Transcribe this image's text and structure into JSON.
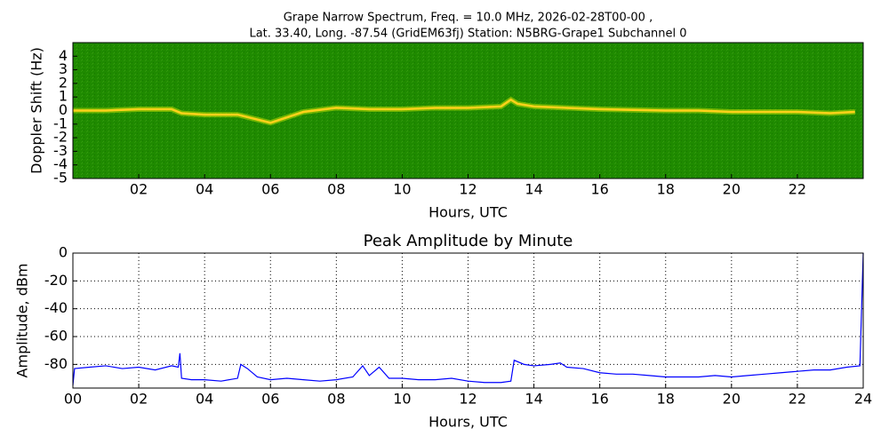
{
  "chart_data": [
    {
      "type": "spectrogram",
      "title": "Grape Narrow Spectrum, Freq. = 10.0 MHz, 2026-02-28T00-00 ,",
      "subtitle": "Lat.  33.40, Long. -87.54 (GridEM63fj) Station: N5BRG-Grape1 Subchannel 0",
      "xlabel": "Hours, UTC",
      "ylabel": "Doppler Shift (Hz)",
      "xlim": [
        0,
        24
      ],
      "ylim": [
        -5,
        5
      ],
      "xticks": [
        {
          "value": 2,
          "label": "02"
        },
        {
          "value": 4,
          "label": "04"
        },
        {
          "value": 6,
          "label": "06"
        },
        {
          "value": 8,
          "label": "08"
        },
        10,
        12,
        14,
        16,
        18,
        20,
        22
      ],
      "yticks": [
        -5,
        -4,
        -3,
        -2,
        -1,
        0,
        1,
        2,
        3,
        4
      ],
      "color": "#ffd21a",
      "background": "#1f8a00",
      "x": [
        0,
        1,
        2,
        3,
        3.3,
        4,
        5,
        5.5,
        6,
        6.5,
        7,
        8,
        9,
        10,
        11,
        12,
        13,
        13.3,
        13.5,
        14,
        15,
        16,
        17,
        18,
        19,
        20,
        21,
        22,
        23,
        23.75
      ],
      "values": [
        0,
        0,
        0.1,
        0.1,
        -0.2,
        -0.3,
        -0.3,
        -0.6,
        -0.9,
        -0.5,
        -0.1,
        0.2,
        0.1,
        0.1,
        0.2,
        0.2,
        0.3,
        0.8,
        0.5,
        0.3,
        0.2,
        0.1,
        0.05,
        0,
        0,
        -0.1,
        -0.1,
        -0.1,
        -0.2,
        -0.1
      ]
    },
    {
      "type": "line",
      "title": "Peak Amplitude by Minute",
      "xlabel": "Hours, UTC",
      "ylabel": "Amplitude, dBm",
      "xlim": [
        0,
        24
      ],
      "ylim": [
        -97,
        0
      ],
      "grid": true,
      "color": "#0000ff",
      "xticks": [
        {
          "value": 0,
          "label": "00"
        },
        {
          "value": 2,
          "label": "02"
        },
        {
          "value": 4,
          "label": "04"
        },
        {
          "value": 6,
          "label": "06"
        },
        {
          "value": 8,
          "label": "08"
        },
        10,
        12,
        14,
        16,
        18,
        20,
        22,
        24
      ],
      "yticks": [
        -80,
        -60,
        -40,
        -20,
        0
      ],
      "x": [
        0,
        0.05,
        0.5,
        1,
        1.5,
        2,
        2.5,
        3,
        3.2,
        3.25,
        3.3,
        3.6,
        4,
        4.5,
        5,
        5.1,
        5.3,
        5.6,
        6,
        6.5,
        7,
        7.5,
        8,
        8.5,
        8.8,
        9,
        9.3,
        9.6,
        10,
        10.5,
        11,
        11.5,
        12,
        12.5,
        13,
        13.3,
        13.4,
        13.7,
        14,
        14.5,
        14.8,
        15,
        15.5,
        16,
        16.5,
        17,
        17.5,
        18,
        18.5,
        19,
        19.5,
        20,
        20.5,
        21,
        21.5,
        22,
        22.5,
        23,
        23.5,
        23.9,
        24
      ],
      "values": [
        -95,
        -83,
        -82,
        -81,
        -83,
        -82,
        -84,
        -81,
        -82,
        -72,
        -90,
        -91,
        -91,
        -92,
        -90,
        -80,
        -83,
        -89,
        -91,
        -90,
        -91,
        -92,
        -91,
        -89,
        -81,
        -88,
        -82,
        -90,
        -90,
        -91,
        -91,
        -90,
        -92,
        -93,
        -93,
        -92,
        -77,
        -80,
        -81,
        -80,
        -79,
        -82,
        -83,
        -86,
        -87,
        -87,
        -88,
        -89,
        -89,
        -89,
        -88,
        -89,
        -88,
        -87,
        -86,
        -85,
        -84,
        -84,
        -82,
        -81,
        0
      ]
    }
  ]
}
